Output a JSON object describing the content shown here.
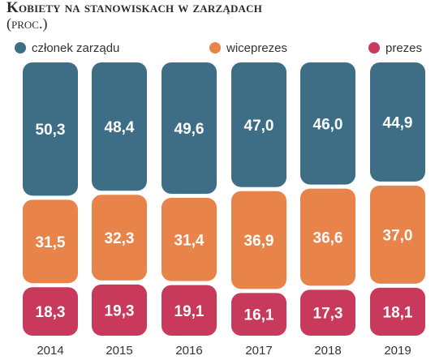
{
  "chart_data": {
    "type": "bar",
    "stacked": true,
    "title": "Kobiety na stanowiskach w zarządach",
    "subtitle": "(proc.)",
    "categories": [
      "2014",
      "2015",
      "2016",
      "2017",
      "2018",
      "2019"
    ],
    "series": [
      {
        "name": "członek zarządu",
        "color": "#3d6e86",
        "values": [
          50.3,
          48.4,
          49.6,
          47.0,
          46.0,
          44.9
        ],
        "labels": [
          "50,3",
          "48,4",
          "49,6",
          "47,0",
          "46,0",
          "44,9"
        ]
      },
      {
        "name": "wiceprezes",
        "color": "#e8834a",
        "values": [
          31.5,
          32.3,
          31.4,
          36.9,
          36.6,
          37.0
        ],
        "labels": [
          "31,5",
          "32,3",
          "31,4",
          "36,9",
          "36,6",
          "37,0"
        ]
      },
      {
        "name": "prezes",
        "color": "#c8395b",
        "values": [
          18.3,
          19.3,
          19.1,
          16.1,
          17.3,
          18.1
        ],
        "labels": [
          "18,3",
          "19,3",
          "19,1",
          "16,1",
          "17,3",
          "18,1"
        ]
      }
    ],
    "legend_position": "top",
    "grid": false
  }
}
